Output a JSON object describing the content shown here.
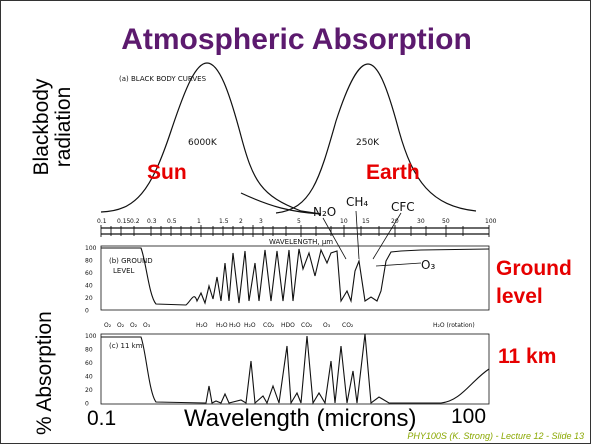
{
  "slide": {
    "title": "Atmospheric Absorption",
    "ylabel_top": "Blackbody radiation",
    "ylabel_bottom": "% Absorption",
    "xaxis": {
      "min_label": "0.1",
      "label": "Wavelength (microns)",
      "max_label": "100"
    },
    "annotations": {
      "sun": "Sun",
      "earth": "Earth",
      "ground": "Ground level",
      "km": "11 km"
    },
    "credit": "PHY100S (K. Strong) - Lecture 12 - Slide 13",
    "colors": {
      "title": "#5c1a6e",
      "highlight": "#e60000",
      "credit": "#8aa800"
    }
  },
  "figure": {
    "panel_a": {
      "caption": "(a) BLACK BODY CURVES",
      "sun_temp": "6000K",
      "earth_temp": "250K"
    },
    "wavelength_axis": {
      "title": "WAVELENGTH, μm",
      "ticks": [
        "0.1",
        "0.15",
        "0.2",
        "0.3",
        "0.5",
        "1",
        "1.5",
        "2",
        "3",
        "5",
        "10",
        "15",
        "20",
        "30",
        "50",
        "100"
      ]
    },
    "gases": {
      "n2o": "N₂O",
      "ch4": "CH₄",
      "cfc": "CFC",
      "o3": "O₃"
    },
    "panel_b": {
      "caption_line1": "(b) GROUND",
      "caption_line2": "LEVEL",
      "yticks": [
        "100",
        "80",
        "60",
        "40",
        "20",
        "0"
      ],
      "species": [
        "O₂",
        "O₂",
        "O₂",
        "O₃",
        "H₂O",
        "H₂O",
        "H₂O",
        "H₂O",
        "CO₂",
        "HDO",
        "CO₂",
        "O₃",
        "CO₂",
        "H₂O (rotation)"
      ]
    },
    "panel_c": {
      "caption": "(c) 11 km",
      "yticks": [
        "100",
        "80",
        "60",
        "40",
        "20",
        "0"
      ]
    }
  }
}
